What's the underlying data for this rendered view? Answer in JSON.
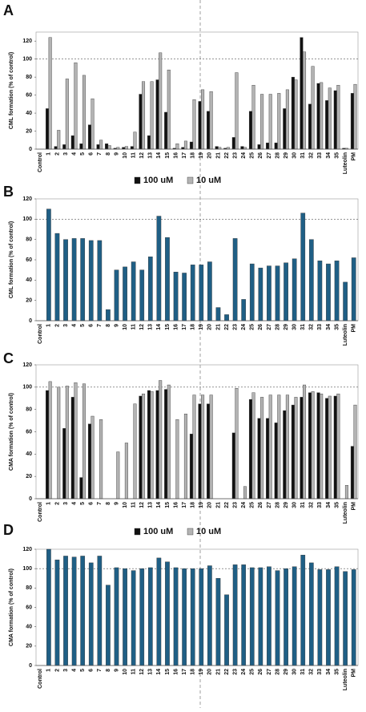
{
  "chart_data": [
    {
      "type": "bar",
      "label": "A",
      "y_label": "CML formation (% of control)",
      "categories": [
        "Control",
        "1",
        "2",
        "3",
        "4",
        "5",
        "6",
        "7",
        "8",
        "9",
        "10",
        "11",
        "12",
        "13",
        "14",
        "15",
        "16",
        "17",
        "18",
        "19",
        "20",
        "21",
        "22",
        "23",
        "24",
        "25",
        "26",
        "27",
        "28",
        "29",
        "30",
        "31",
        "32",
        "33",
        "34",
        "35",
        "Luteolin",
        "PM"
      ],
      "series": [
        {
          "name": "100 uM",
          "color": "#111111",
          "values": [
            null,
            45,
            3,
            5,
            15,
            6,
            27,
            5,
            6,
            1,
            2,
            3,
            61,
            15,
            77,
            41,
            1,
            2,
            8,
            53,
            42,
            3,
            1,
            13,
            3,
            42,
            5,
            7,
            7,
            45,
            80,
            124,
            50,
            73,
            54,
            65,
            1,
            62
          ]
        },
        {
          "name": "10 uM",
          "color": "#b3b3b3",
          "values": [
            null,
            124,
            21,
            78,
            96,
            82,
            56,
            10,
            4,
            2,
            3,
            19,
            75,
            75,
            107,
            88,
            6,
            9,
            55,
            66,
            64,
            2,
            2,
            85,
            2,
            71,
            61,
            61,
            62,
            66,
            77,
            108,
            92,
            74,
            68,
            71,
            1,
            72
          ]
        }
      ],
      "ylim": [
        0,
        130
      ],
      "yticks": [
        0,
        20,
        40,
        60,
        80,
        100,
        120
      ],
      "reference_line": 100,
      "legend": true
    },
    {
      "type": "bar",
      "label": "B",
      "y_label": "CML formation (% of control)",
      "categories": [
        "Control",
        "1",
        "2",
        "3",
        "4",
        "5",
        "6",
        "7",
        "8",
        "9",
        "10",
        "11",
        "12",
        "13",
        "14",
        "15",
        "16",
        "17",
        "18",
        "19",
        "20",
        "21",
        "22",
        "23",
        "24",
        "25",
        "26",
        "27",
        "28",
        "29",
        "30",
        "31",
        "32",
        "33",
        "34",
        "35",
        "Luteolin",
        "PM"
      ],
      "values": [
        null,
        110,
        86,
        80,
        81,
        81,
        79,
        79,
        11,
        50,
        53,
        58,
        50,
        63,
        103,
        82,
        48,
        47,
        55,
        55,
        58,
        13,
        6,
        81,
        21,
        56,
        52,
        54,
        54,
        57,
        61,
        106,
        80,
        59,
        56,
        59,
        38,
        62
      ],
      "color": "#1f5f85",
      "ylim": [
        0,
        120
      ],
      "yticks": [
        0,
        20,
        40,
        60,
        80,
        100,
        120
      ],
      "reference_line": 100,
      "legend": false
    },
    {
      "type": "bar",
      "label": "C",
      "y_label": "CMA formation (% of control)",
      "categories": [
        "Control",
        "1",
        "2",
        "3",
        "4",
        "5",
        "6",
        "7",
        "8",
        "9",
        "10",
        "11",
        "12",
        "13",
        "14",
        "15",
        "16",
        "17",
        "18",
        "19",
        "20",
        "21",
        "22",
        "23",
        "24",
        "25",
        "26",
        "27",
        "28",
        "29",
        "30",
        "31",
        "32",
        "33",
        "34",
        "35",
        "Luteolin",
        "PM"
      ],
      "series": [
        {
          "name": "100 uM",
          "color": "#111111",
          "values": [
            null,
            97,
            0,
            63,
            91,
            19,
            67,
            0,
            0,
            0,
            0,
            0,
            92,
            97,
            97,
            98,
            0,
            0,
            58,
            85,
            85,
            0,
            0,
            59,
            0,
            89,
            72,
            72,
            68,
            79,
            84,
            91,
            95,
            95,
            90,
            92,
            0,
            47
          ]
        },
        {
          "name": "10 uM",
          "color": "#b3b3b3",
          "values": [
            null,
            105,
            100,
            101,
            104,
            103,
            74,
            71,
            0,
            42,
            50,
            85,
            94,
            96,
            106,
            102,
            71,
            76,
            93,
            93,
            93,
            0,
            0,
            99,
            11,
            95,
            91,
            93,
            93,
            93,
            91,
            102,
            96,
            94,
            92,
            94,
            12,
            84
          ]
        }
      ],
      "ylim": [
        0,
        120
      ],
      "yticks": [
        0,
        20,
        40,
        60,
        80,
        100,
        120
      ],
      "reference_line": 100,
      "legend": true
    },
    {
      "type": "bar",
      "label": "D",
      "y_label": "CMA formation (% of control)",
      "categories": [
        "Control",
        "1",
        "2",
        "3",
        "4",
        "5",
        "6",
        "7",
        "8",
        "9",
        "10",
        "11",
        "12",
        "13",
        "14",
        "15",
        "16",
        "17",
        "18",
        "19",
        "20",
        "21",
        "22",
        "23",
        "24",
        "25",
        "26",
        "27",
        "28",
        "29",
        "30",
        "31",
        "32",
        "33",
        "34",
        "35",
        "Luteolin",
        "PM"
      ],
      "values": [
        null,
        120,
        109,
        113,
        112,
        113,
        106,
        113,
        83,
        101,
        100,
        98,
        100,
        101,
        111,
        107,
        101,
        100,
        100,
        100,
        103,
        90,
        73,
        104,
        104,
        101,
        101,
        102,
        98,
        100,
        102,
        114,
        106,
        99,
        99,
        102,
        97,
        99
      ],
      "color": "#1f5f85",
      "ylim": [
        0,
        120
      ],
      "yticks": [
        0,
        20,
        40,
        60,
        80,
        100,
        120
      ],
      "reference_line": 100,
      "legend": false
    }
  ]
}
